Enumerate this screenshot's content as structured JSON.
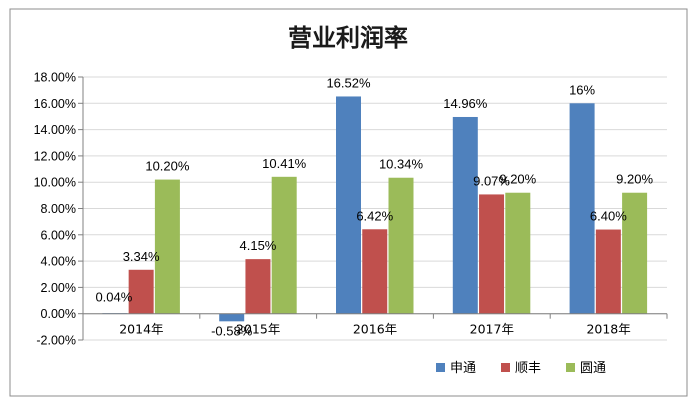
{
  "colors": {
    "申通": "#4F81BD",
    "顺丰": "#C0504D",
    "圆通": "#9BBB59",
    "border": "#8C8C8C",
    "grid": "#D9D9D9",
    "axis": "#808080"
  },
  "chart_data": {
    "type": "bar",
    "title": "营业利润率",
    "categories": [
      "2014年",
      "2015年",
      "2016年",
      "2017年",
      "2018年"
    ],
    "series": [
      {
        "name": "申通",
        "values": [
          0.04,
          -0.58,
          16.52,
          14.96,
          16
        ],
        "labels": [
          "0.04%",
          "-0.58%",
          "16.52%",
          "14.96%",
          "16%"
        ]
      },
      {
        "name": "顺丰",
        "values": [
          3.34,
          4.15,
          6.42,
          9.07,
          6.4
        ],
        "labels": [
          "3.34%",
          "4.15%",
          "6.42%",
          "9.07%",
          "6.40%"
        ]
      },
      {
        "name": "圆通",
        "values": [
          10.2,
          10.41,
          10.34,
          9.2,
          9.2
        ],
        "labels": [
          "10.20%",
          "10.41%",
          "10.34%",
          "9.20%",
          "9.20%"
        ]
      }
    ],
    "ylim": [
      -2,
      18
    ],
    "yticks": [
      "-2.00%",
      "0.00%",
      "2.00%",
      "4.00%",
      "6.00%",
      "8.00%",
      "10.00%",
      "12.00%",
      "14.00%",
      "16.00%",
      "18.00%"
    ],
    "grid": true,
    "legend": "bottom-right"
  }
}
